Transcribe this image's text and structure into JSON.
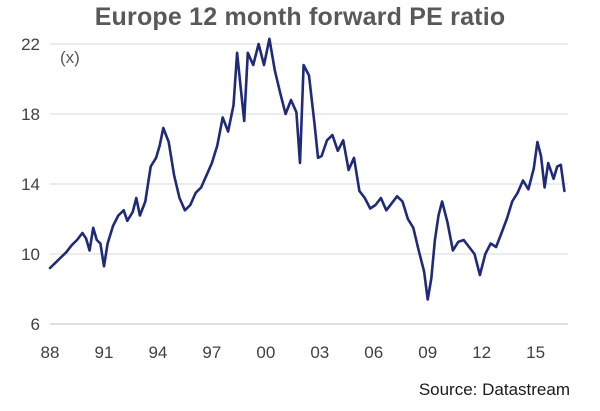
{
  "chart_data": {
    "type": "line",
    "title": "Europe 12 month forward PE ratio",
    "unit_label": "(x)",
    "source": "Source: Datastream",
    "ylim": [
      6,
      22
    ],
    "yticks": [
      6,
      10,
      14,
      18,
      22
    ],
    "xlim": [
      1988.0,
      2016.8
    ],
    "xticks": [
      {
        "value": 1988,
        "label": "88"
      },
      {
        "value": 1991,
        "label": "91"
      },
      {
        "value": 1994,
        "label": "94"
      },
      {
        "value": 1997,
        "label": "97"
      },
      {
        "value": 2000,
        "label": "00"
      },
      {
        "value": 2003,
        "label": "03"
      },
      {
        "value": 2006,
        "label": "06"
      },
      {
        "value": 2009,
        "label": "09"
      },
      {
        "value": 2012,
        "label": "12"
      },
      {
        "value": 2015,
        "label": "15"
      }
    ],
    "grid": "horizontal",
    "line_color": "#1f2a78",
    "series": [
      {
        "x": [
          1988.0,
          1988.3,
          1988.6,
          1988.9,
          1989.2,
          1989.5,
          1989.8,
          1990.0,
          1990.2,
          1990.4,
          1990.6,
          1990.8,
          1991.0,
          1991.2,
          1991.5,
          1991.8,
          1992.1,
          1992.3,
          1992.6,
          1992.8,
          1993.0,
          1993.3,
          1993.6,
          1993.9,
          1994.1,
          1994.3,
          1994.6,
          1994.9,
          1995.2,
          1995.5,
          1995.8,
          1996.1,
          1996.4,
          1996.7,
          1997.0,
          1997.3,
          1997.6,
          1997.9,
          1998.2,
          1998.4,
          1998.6,
          1998.8,
          1999.0,
          1999.3,
          1999.6,
          1999.9,
          2000.2,
          2000.5,
          2000.8,
          2001.1,
          2001.4,
          2001.7,
          2001.9,
          2002.1,
          2002.4,
          2002.7,
          2002.9,
          2003.1,
          2003.4,
          2003.7,
          2004.0,
          2004.3,
          2004.6,
          2004.9,
          2005.2,
          2005.5,
          2005.8,
          2006.1,
          2006.4,
          2006.7,
          2007.0,
          2007.3,
          2007.6,
          2007.9,
          2008.2,
          2008.5,
          2008.8,
          2009.0,
          2009.2,
          2009.4,
          2009.6,
          2009.8,
          2010.1,
          2010.4,
          2010.7,
          2011.0,
          2011.3,
          2011.6,
          2011.9,
          2012.2,
          2012.5,
          2012.8,
          2013.1,
          2013.4,
          2013.7,
          2014.0,
          2014.3,
          2014.6,
          2014.9,
          2015.1,
          2015.3,
          2015.5,
          2015.7,
          2016.0,
          2016.2,
          2016.4,
          2016.6
        ],
        "y": [
          9.2,
          9.5,
          9.8,
          10.1,
          10.5,
          10.8,
          11.2,
          10.9,
          10.2,
          11.5,
          10.8,
          10.6,
          9.3,
          10.6,
          11.6,
          12.2,
          12.5,
          11.9,
          12.4,
          13.2,
          12.2,
          13.0,
          15.0,
          15.5,
          16.2,
          17.2,
          16.4,
          14.5,
          13.2,
          12.5,
          12.8,
          13.5,
          13.8,
          14.5,
          15.2,
          16.2,
          17.8,
          17.0,
          18.5,
          21.5,
          19.5,
          17.6,
          21.5,
          20.8,
          22.0,
          20.8,
          22.3,
          20.5,
          19.2,
          18.0,
          18.8,
          18.1,
          15.2,
          20.8,
          20.2,
          17.5,
          15.5,
          15.6,
          16.5,
          16.8,
          15.9,
          16.5,
          14.8,
          15.5,
          13.6,
          13.2,
          12.6,
          12.8,
          13.2,
          12.5,
          12.9,
          13.3,
          13.0,
          12.0,
          11.5,
          10.2,
          9.0,
          7.4,
          8.6,
          10.8,
          12.2,
          13.0,
          11.8,
          10.2,
          10.7,
          10.8,
          10.4,
          10.0,
          8.8,
          10.0,
          10.6,
          10.4,
          11.2,
          12.0,
          13.0,
          13.5,
          14.2,
          13.7,
          14.9,
          16.4,
          15.6,
          13.8,
          15.2,
          14.3,
          15.0,
          15.1,
          13.6
        ]
      }
    ]
  }
}
